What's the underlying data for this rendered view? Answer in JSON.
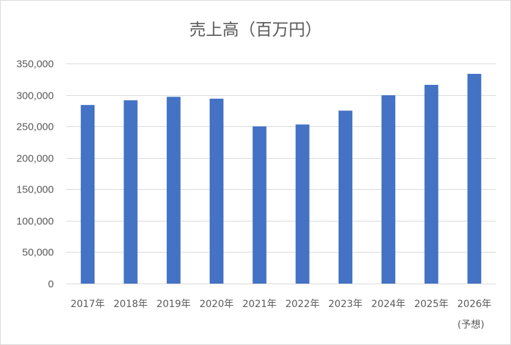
{
  "chart_data": {
    "type": "bar",
    "title": "売上高（百万円）",
    "xlabel": "",
    "ylabel": "",
    "categories": [
      "2017年",
      "2018年",
      "2019年",
      "2020年",
      "2021年",
      "2022年",
      "2023年",
      "2024年",
      "2025年",
      "2026年"
    ],
    "category_sublabels": [
      "",
      "",
      "",
      "",
      "",
      "",
      "",
      "",
      "",
      "(予想)"
    ],
    "values": [
      284000,
      291500,
      297000,
      294000,
      250000,
      253000,
      275000,
      299500,
      316000,
      333500
    ],
    "ylim": [
      0,
      350000
    ],
    "yticks": [
      0,
      50000,
      100000,
      150000,
      200000,
      250000,
      300000,
      350000
    ],
    "ytick_labels": [
      "0",
      "50,000",
      "100,000",
      "150,000",
      "200,000",
      "250,000",
      "300,000",
      "350,000"
    ],
    "grid": true,
    "legend": "none",
    "bar_color": "#4472c4",
    "grid_color": "#d9d9d9",
    "text_color": "#595959"
  }
}
